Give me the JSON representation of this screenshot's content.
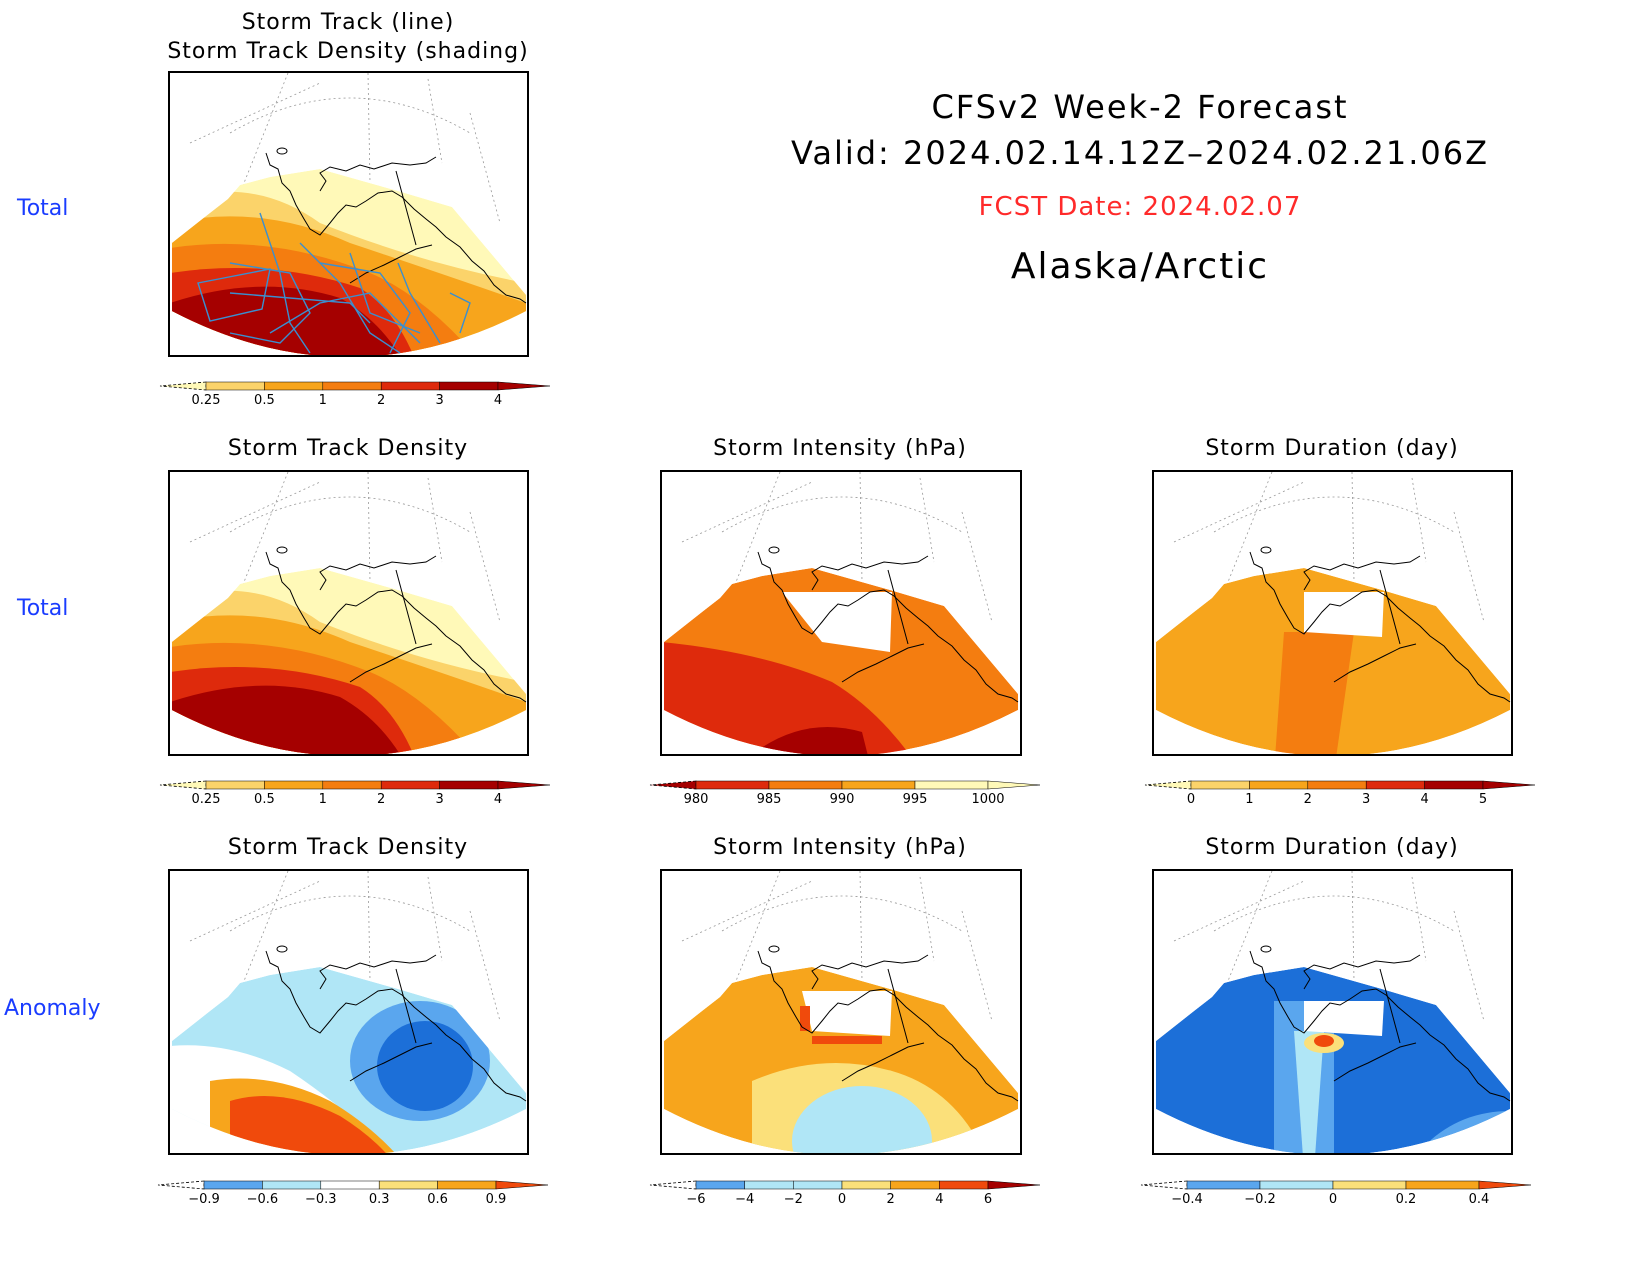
{
  "header": {
    "title": "CFSv2 Week-2 Forecast",
    "valid": "Valid: 2024.02.14.12Z–2024.02.21.06Z",
    "fcst_date": "FCST Date: 2024.02.07",
    "region": "Alaska/Arctic"
  },
  "row_labels": [
    "Total",
    "Total",
    "Anomaly"
  ],
  "colors": {
    "label_blue": "#1a3cff",
    "fcst_red": "#ff2a2a",
    "track_line": "#3a8fd0"
  },
  "panels": {
    "p1_title_line1": "Storm Track (line)",
    "p1_title_line2": "Storm Track Density (shading)",
    "density_title": "Storm Track Density",
    "intensity_title": "Storm Intensity (hPa)",
    "duration_title": "Storm Duration (day)"
  },
  "chart_data": [
    {
      "type": "heatmap",
      "title": "Storm Track (line) / Storm Track Density (shading)",
      "row": "Total",
      "colorbar": {
        "levels": [
          0.25,
          0.5,
          1,
          2,
          3,
          4
        ],
        "colors": [
          "#fff9b8",
          "#fbd36a",
          "#f7a51c",
          "#f47d10",
          "#de2a0c",
          "#a50000"
        ]
      }
    },
    {
      "type": "heatmap",
      "title": "Storm Track Density",
      "row": "Total",
      "colorbar": {
        "levels": [
          0.25,
          0.5,
          1,
          2,
          3,
          4
        ],
        "colors": [
          "#fff9b8",
          "#fbd36a",
          "#f7a51c",
          "#f47d10",
          "#de2a0c",
          "#a50000"
        ]
      }
    },
    {
      "type": "heatmap",
      "title": "Storm Intensity (hPa)",
      "row": "Total",
      "colorbar": {
        "levels": [
          980,
          985,
          990,
          995,
          1000
        ],
        "colors": [
          "#a50000",
          "#de2a0c",
          "#f47d10",
          "#f7a51c",
          "#fff9b8"
        ]
      }
    },
    {
      "type": "heatmap",
      "title": "Storm Duration (day)",
      "row": "Total",
      "colorbar": {
        "levels": [
          0,
          1,
          2,
          3,
          4,
          5
        ],
        "colors": [
          "#fff9b8",
          "#fbd36a",
          "#f7a51c",
          "#f47d10",
          "#de2a0c",
          "#a50000"
        ]
      }
    },
    {
      "type": "heatmap",
      "title": "Storm Track Density",
      "row": "Anomaly",
      "colorbar": {
        "levels": [
          -0.9,
          -0.6,
          -0.3,
          0.3,
          0.6,
          0.9
        ],
        "colors": [
          "#1c6fd8",
          "#5aa6ee",
          "#b0e6f6",
          "#ffffff",
          "#fbe07a",
          "#f7a51c",
          "#f04a0c"
        ]
      }
    },
    {
      "type": "heatmap",
      "title": "Storm Intensity (hPa)",
      "row": "Anomaly",
      "colorbar": {
        "levels": [
          -6,
          -4,
          -2,
          0,
          2,
          4,
          6
        ],
        "colors": [
          "#1c6fd8",
          "#5aa6ee",
          "#b0e6f6",
          "#b0e6f6",
          "#fbe07a",
          "#f7a51c",
          "#f04a0c",
          "#a50000"
        ]
      }
    },
    {
      "type": "heatmap",
      "title": "Storm Duration (day)",
      "row": "Anomaly",
      "colorbar": {
        "levels": [
          -0.4,
          -0.2,
          0,
          0.2,
          0.4
        ],
        "colors": [
          "#1c6fd8",
          "#5aa6ee",
          "#b0e6f6",
          "#fbe07a",
          "#f7a51c",
          "#f04a0c"
        ]
      }
    }
  ]
}
